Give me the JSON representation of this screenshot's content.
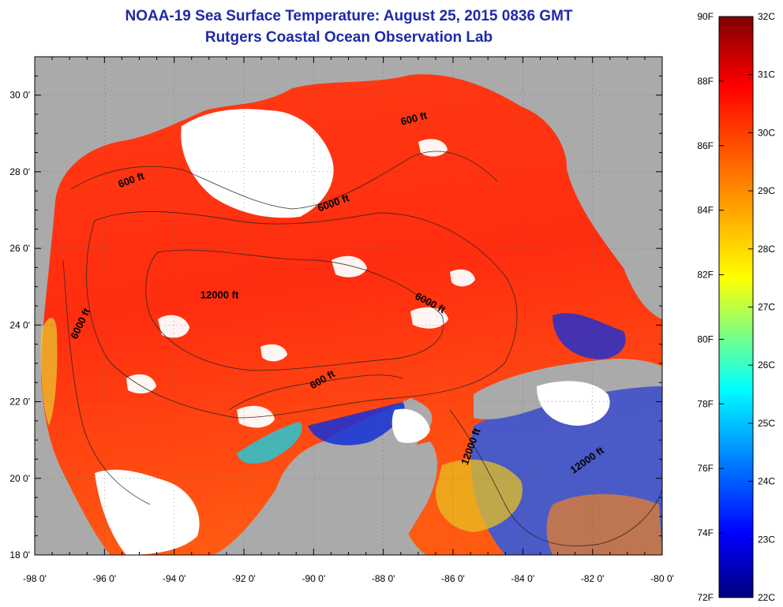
{
  "title_line1": "NOAA-19 Sea Surface Temperature:  August 25, 2015 0836 GMT",
  "title_line2": "Rutgers Coastal Ocean Observation Lab",
  "map": {
    "lon_range": [
      -98,
      -80
    ],
    "lat_range": [
      18,
      31
    ],
    "lon_ticks": [
      "-98 0'",
      "-96 0'",
      "-94 0'",
      "-92 0'",
      "-90 0'",
      "-88 0'",
      "-86 0'",
      "-84 0'",
      "-82 0'",
      "-80 0'"
    ],
    "lat_ticks": [
      "18 0'",
      "20 0'",
      "22 0'",
      "24 0'",
      "26 0'",
      "28 0'",
      "30 0'"
    ],
    "contour_labels": [
      {
        "text": "600 ft",
        "lon": -95.2,
        "lat": 27.7,
        "rot": -20
      },
      {
        "text": "600 ft",
        "lon": -87.1,
        "lat": 29.3,
        "rot": -15
      },
      {
        "text": "6000 ft",
        "lon": -89.4,
        "lat": 27.1,
        "rot": -20
      },
      {
        "text": "12000 ft",
        "lon": -92.7,
        "lat": 24.7,
        "rot": 0
      },
      {
        "text": "6000 ft",
        "lon": -86.7,
        "lat": 24.5,
        "rot": 28
      },
      {
        "text": "6000 ft",
        "lon": -96.6,
        "lat": 24.0,
        "rot": -65
      },
      {
        "text": "600 ft",
        "lon": -89.7,
        "lat": 22.5,
        "rot": -30
      },
      {
        "text": "12000 ft",
        "lon": -85.4,
        "lat": 20.8,
        "rot": -70
      },
      {
        "text": "12000 ft",
        "lon": -82.1,
        "lat": 20.4,
        "rot": -35
      }
    ],
    "colors": {
      "land": "#aaaaaa",
      "cloud": "#ffffff",
      "warm": "#ff2a10",
      "cool": "#1a2adc"
    }
  },
  "colorbar": {
    "f_labels": [
      "90F",
      "88F",
      "86F",
      "84F",
      "82F",
      "80F",
      "78F",
      "76F",
      "74F",
      "72F"
    ],
    "c_labels": [
      "32C",
      "31C",
      "30C",
      "29C",
      "28C",
      "27C",
      "26C",
      "25C",
      "24C",
      "23C",
      "22C"
    ]
  }
}
